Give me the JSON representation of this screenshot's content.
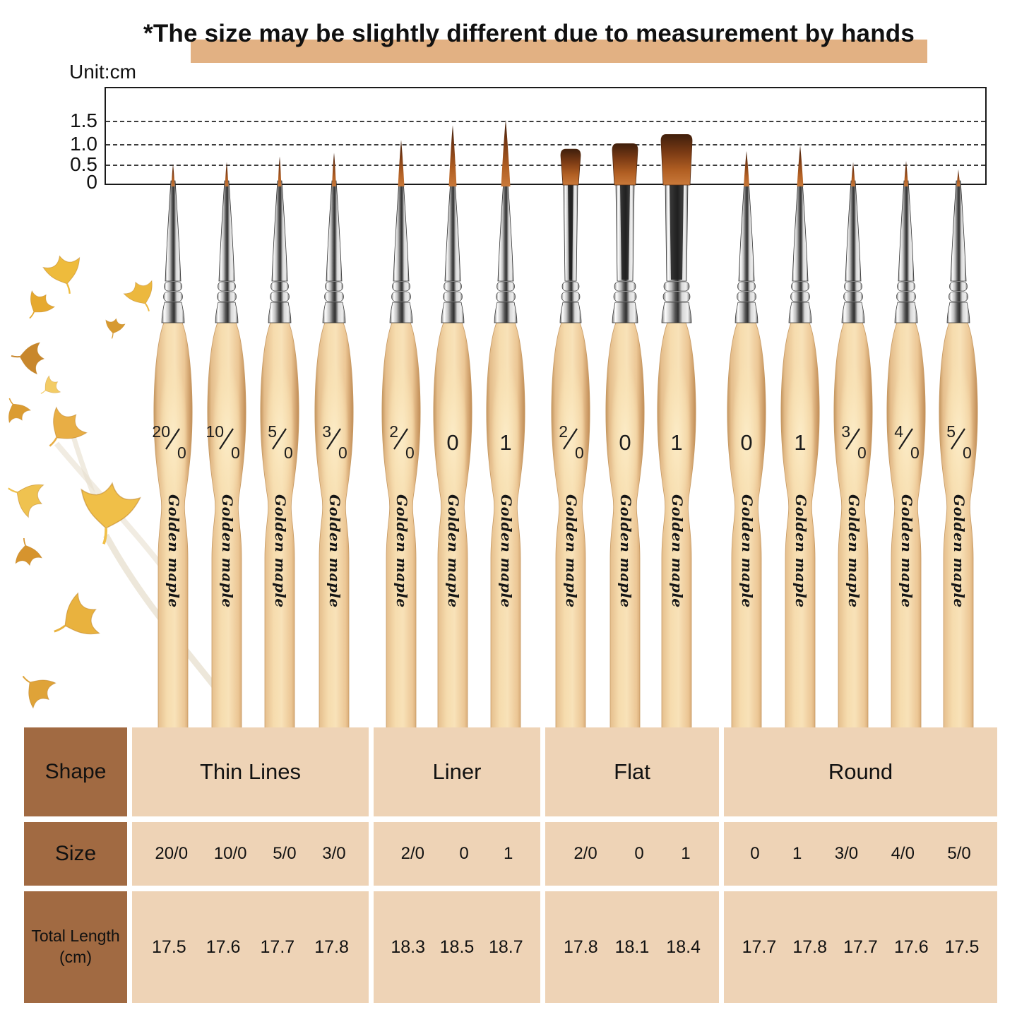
{
  "title": "*The size may be slightly different due to measurement by hands",
  "unit_label": "Unit:cm",
  "brand_text": "Golden maple",
  "colors": {
    "highlight": "#e2b183",
    "table_header_bg": "#a16a42",
    "table_cell_bg": "#eed3b6",
    "wood_light": "#f6dcae",
    "ferrule_chrome": "#d9d9d9",
    "bristle_brown": "#8a4518",
    "leaf_gold": "#eebb3c"
  },
  "ruler": {
    "ticks": [
      "1.5",
      "1.0",
      "0.5",
      "0"
    ]
  },
  "brushes": [
    {
      "label": "20/0",
      "shape": "thin",
      "tip_cm": 0.5
    },
    {
      "label": "10/0",
      "shape": "thin",
      "tip_cm": 0.55
    },
    {
      "label": "5/0",
      "shape": "thin",
      "tip_cm": 0.7
    },
    {
      "label": "3/0",
      "shape": "thin",
      "tip_cm": 0.8
    },
    {
      "label": "2/0",
      "shape": "liner",
      "tip_cm": 1.15
    },
    {
      "label": "0",
      "shape": "liner",
      "tip_cm": 1.55
    },
    {
      "label": "1",
      "shape": "liner",
      "tip_cm": 1.7
    },
    {
      "label": "2/0",
      "shape": "flat",
      "tip_cm": 0.9
    },
    {
      "label": "0",
      "shape": "flat",
      "tip_cm": 1.05
    },
    {
      "label": "1",
      "shape": "flat",
      "tip_cm": 1.3
    },
    {
      "label": "0",
      "shape": "round",
      "tip_cm": 0.85
    },
    {
      "label": "1",
      "shape": "round",
      "tip_cm": 1.0
    },
    {
      "label": "3/0",
      "shape": "round",
      "tip_cm": 0.55
    },
    {
      "label": "4/0",
      "shape": "round",
      "tip_cm": 0.58
    },
    {
      "label": "5/0",
      "shape": "round",
      "tip_cm": 0.35
    }
  ],
  "table": {
    "row_headers": [
      "Shape",
      "Size",
      "Total Length\n(cm)"
    ],
    "groups": [
      {
        "shape": "Thin Lines",
        "sizes": [
          "20/0",
          "10/0",
          "5/0",
          "3/0"
        ],
        "lengths": [
          "17.5",
          "17.6",
          "17.7",
          "17.8"
        ]
      },
      {
        "shape": "Liner",
        "sizes": [
          "2/0",
          "0",
          "1"
        ],
        "lengths": [
          "18.3",
          "18.5",
          "18.7"
        ]
      },
      {
        "shape": "Flat",
        "sizes": [
          "2/0",
          "0",
          "1"
        ],
        "lengths": [
          "17.8",
          "18.1",
          "18.4"
        ]
      },
      {
        "shape": "Round",
        "sizes": [
          "0",
          "1",
          "3/0",
          "4/0",
          "5/0"
        ],
        "lengths": [
          "17.7",
          "17.8",
          "17.7",
          "17.6",
          "17.5"
        ]
      }
    ]
  }
}
